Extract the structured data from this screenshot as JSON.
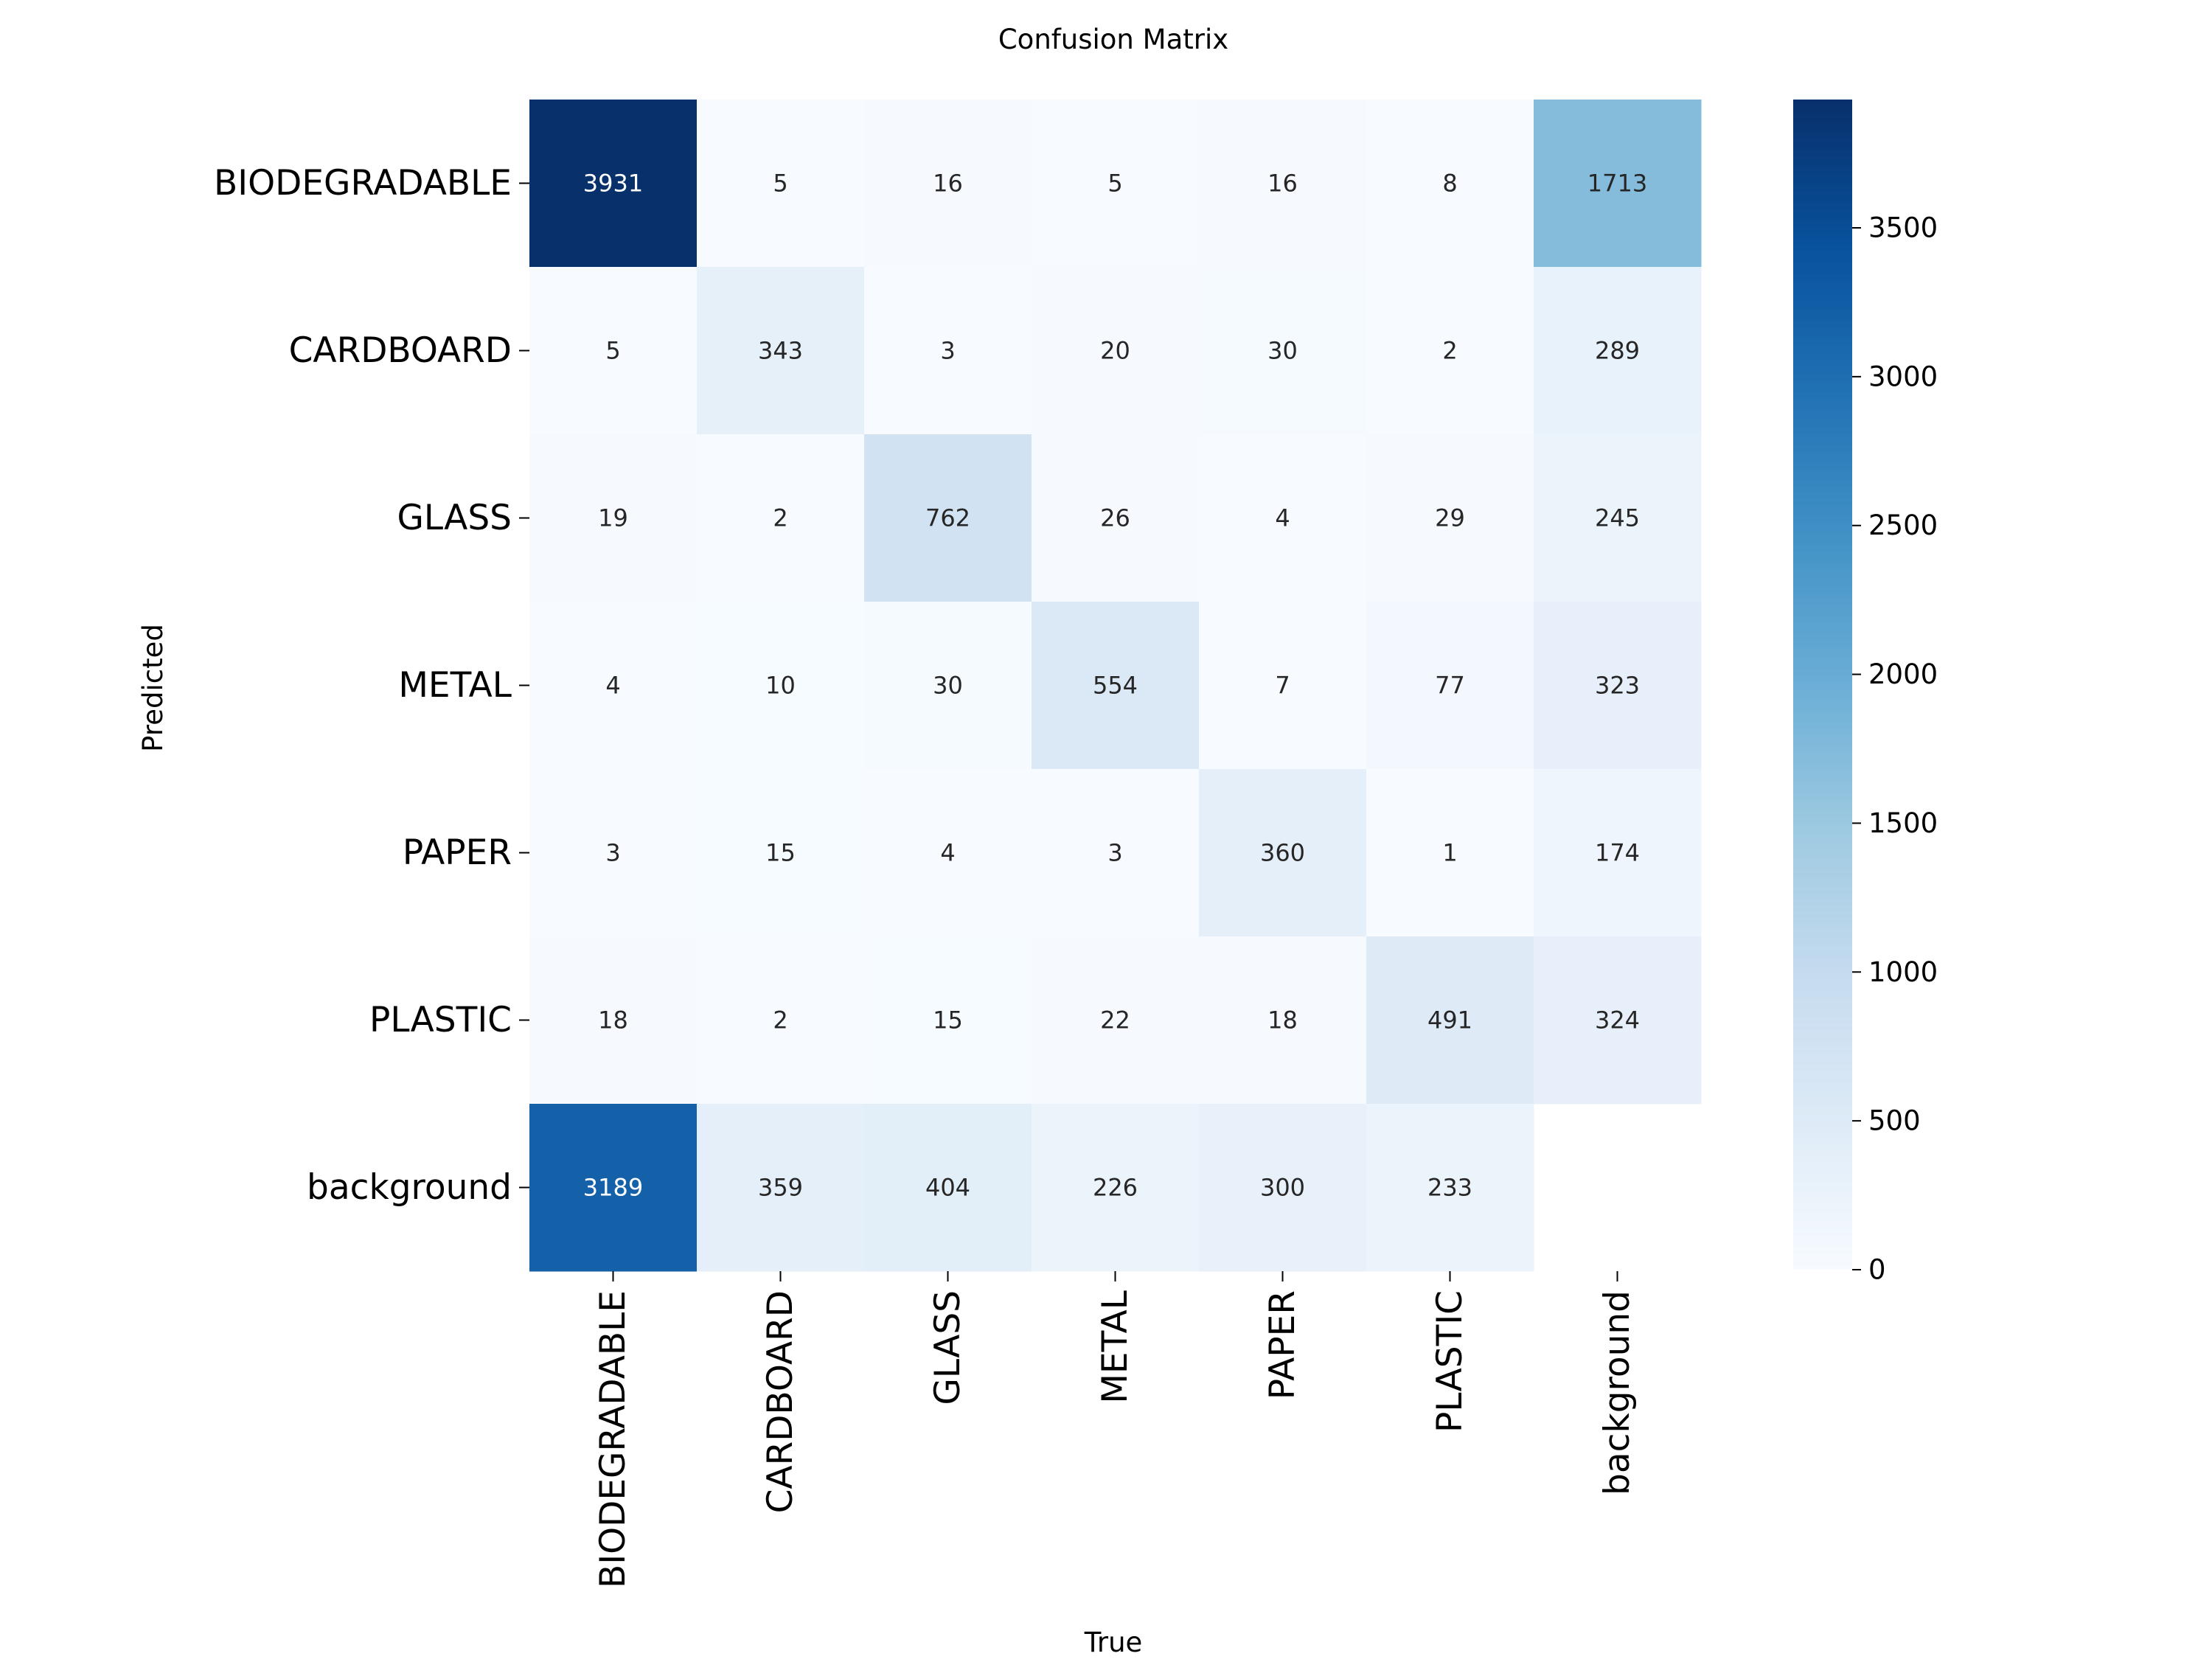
{
  "chart_data": {
    "type": "heatmap",
    "title": "Confusion Matrix",
    "xlabel": "True",
    "ylabel": "Predicted",
    "x_categories": [
      "BIODEGRADABLE",
      "CARDBOARD",
      "GLASS",
      "METAL",
      "PAPER",
      "PLASTIC",
      "background"
    ],
    "y_categories": [
      "BIODEGRADABLE",
      "CARDBOARD",
      "GLASS",
      "METAL",
      "PAPER",
      "PLASTIC",
      "background"
    ],
    "values": [
      [
        3931,
        5,
        16,
        5,
        16,
        8,
        1713
      ],
      [
        5,
        343,
        3,
        20,
        30,
        2,
        289
      ],
      [
        19,
        2,
        762,
        26,
        4,
        29,
        245
      ],
      [
        4,
        10,
        30,
        554,
        7,
        77,
        323
      ],
      [
        3,
        15,
        4,
        3,
        360,
        1,
        174
      ],
      [
        18,
        2,
        15,
        22,
        18,
        491,
        324
      ],
      [
        3189,
        359,
        404,
        226,
        300,
        233,
        null
      ]
    ],
    "colormap": "Blues",
    "colorbar": {
      "min": 0,
      "max": 3931,
      "ticks": [
        0,
        500,
        1000,
        1500,
        2000,
        2500,
        3000,
        3500
      ]
    },
    "grid": false
  }
}
